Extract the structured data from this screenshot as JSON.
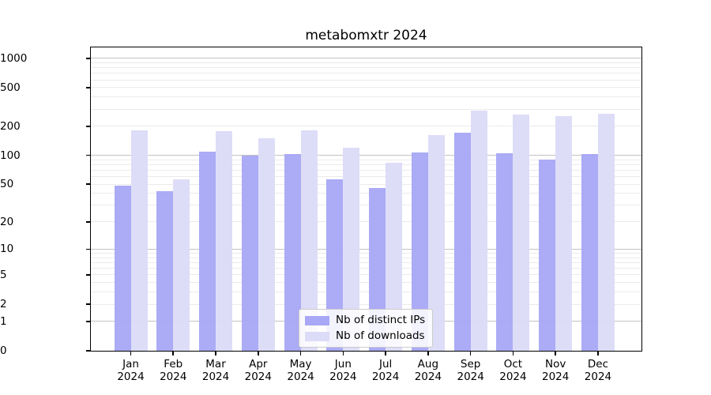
{
  "chart_data": {
    "type": "bar",
    "title": "metabomxtr 2024",
    "categories": [
      "Jan",
      "Feb",
      "Mar",
      "Apr",
      "May",
      "Jun",
      "Jul",
      "Aug",
      "Sep",
      "Oct",
      "Nov",
      "Dec"
    ],
    "year": "2024",
    "series": [
      {
        "name": "Nb of distinct IPs",
        "color": "#a8a8f6",
        "values": [
          48,
          42,
          110,
          100,
          103,
          56,
          46,
          107,
          170,
          105,
          90,
          103
        ]
      },
      {
        "name": "Nb of downloads",
        "color": "#dcdcf8",
        "values": [
          180,
          56,
          178,
          150,
          180,
          120,
          84,
          162,
          290,
          265,
          253,
          270
        ]
      }
    ],
    "yscale": "log1p",
    "ylim": [
      0,
      1290
    ],
    "yticks": [
      0,
      1,
      2,
      5,
      10,
      20,
      50,
      100,
      200,
      500,
      1000
    ],
    "grid": true,
    "legend_position": "lower center",
    "axis_color": "#000000",
    "major_grid_color": "#c3c3c3",
    "minor_grid_color": "#ebebeb"
  }
}
